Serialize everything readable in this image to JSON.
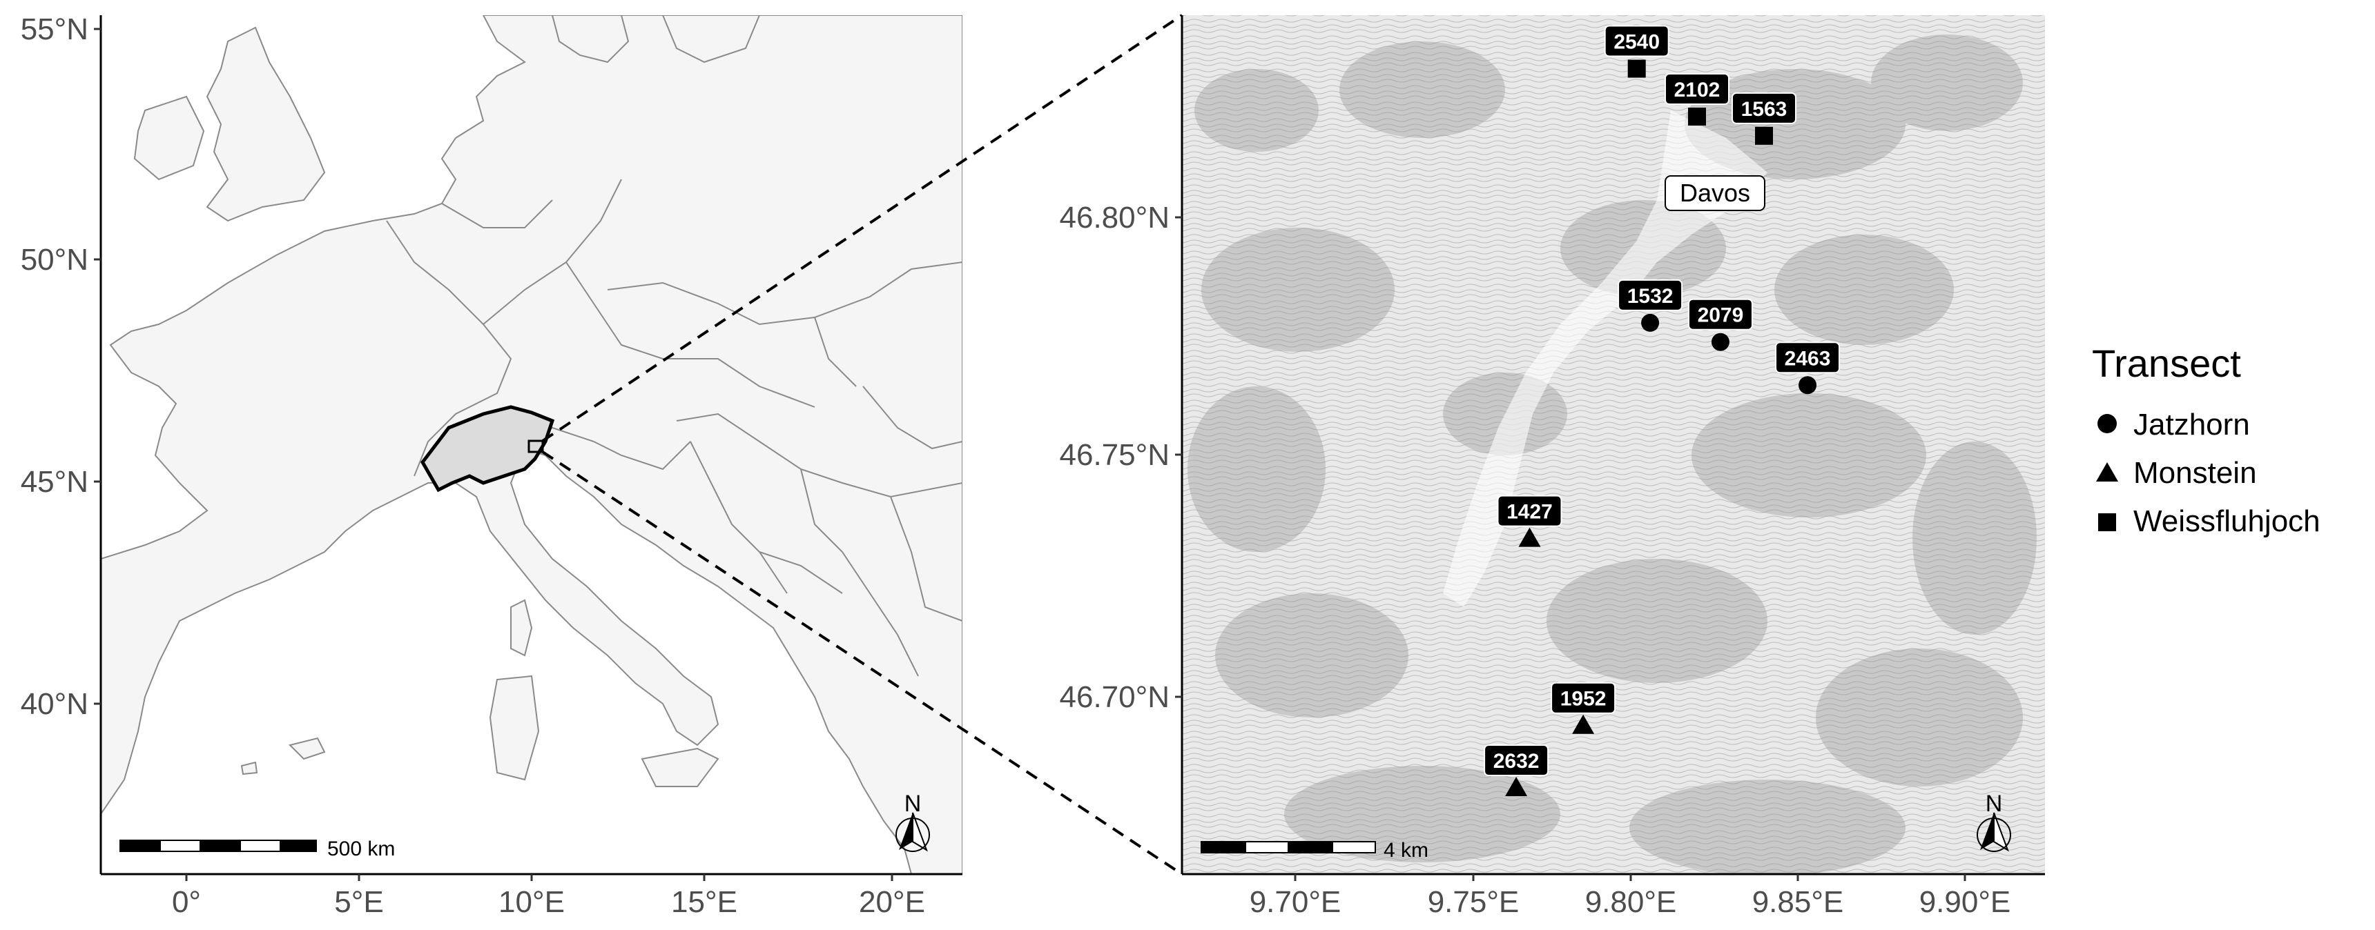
{
  "overview_map": {
    "lat_ticks": [
      "55°N",
      "50°N",
      "45°N",
      "40°N"
    ],
    "lon_ticks": [
      "0°",
      "5°E",
      "10°E",
      "15°E",
      "20°E"
    ],
    "scale_label": "500 km",
    "north_label": "N",
    "highlight": "Switzerland"
  },
  "detail_map": {
    "lat_ticks": [
      "46.80°N",
      "46.75°N",
      "46.70°N"
    ],
    "lon_ticks": [
      "9.70°E",
      "9.75°E",
      "9.80°E",
      "9.85°E",
      "9.90°E"
    ],
    "scale_label": "4 km",
    "north_label": "N",
    "town_label": "Davos"
  },
  "legend": {
    "title": "Transect",
    "items": [
      {
        "label": "Jatzhorn",
        "shape": "circle"
      },
      {
        "label": "Monstein",
        "shape": "triangle"
      },
      {
        "label": "Weissfluhjoch",
        "shape": "square"
      }
    ]
  },
  "sites": [
    {
      "elevation": "2540",
      "transect": "Weissfluhjoch",
      "lon": 9.802,
      "lat": 46.831
    },
    {
      "elevation": "2102",
      "transect": "Weissfluhjoch",
      "lon": 9.82,
      "lat": 46.821
    },
    {
      "elevation": "1563",
      "transect": "Weissfluhjoch",
      "lon": 9.84,
      "lat": 46.817
    },
    {
      "elevation": "1532",
      "transect": "Jatzhorn",
      "lon": 9.806,
      "lat": 46.778
    },
    {
      "elevation": "2079",
      "transect": "Jatzhorn",
      "lon": 9.827,
      "lat": 46.774
    },
    {
      "elevation": "2463",
      "transect": "Jatzhorn",
      "lon": 9.853,
      "lat": 46.765
    },
    {
      "elevation": "1427",
      "transect": "Monstein",
      "lon": 9.77,
      "lat": 46.733
    },
    {
      "elevation": "1952",
      "transect": "Monstein",
      "lon": 9.786,
      "lat": 46.694
    },
    {
      "elevation": "2632",
      "transect": "Monstein",
      "lon": 9.766,
      "lat": 46.681
    }
  ],
  "colors": {
    "land": "#f5f5f5",
    "switzerland": "#dcdcdc",
    "border": "#8a8a8a",
    "label_bg": "#000000",
    "terrain": "#bdbdbd"
  }
}
